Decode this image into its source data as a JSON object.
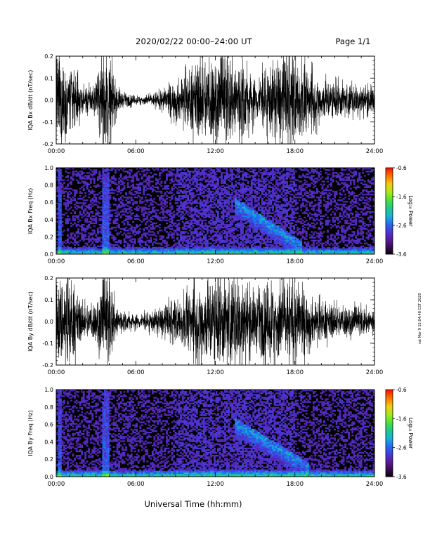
{
  "header": {
    "title": "2020/02/22  00:00–24:00 UT",
    "page_label": "Page 1/1"
  },
  "footer": {
    "xlabel": "Universal Time (hh:mm)",
    "side_note": "rat  Mar 9 15:04:48 CST 2020"
  },
  "colors": {
    "waveform": "#000000",
    "frame": "#000000",
    "colormap": [
      "#000000",
      "#3a0a52",
      "#5a1a9a",
      "#4a38d8",
      "#1f6ff0",
      "#18b4d6",
      "#20c890",
      "#4fe036",
      "#a8e81e",
      "#f0d010",
      "#ff7a00",
      "#ff1a00"
    ]
  },
  "chart_data": [
    {
      "type": "line",
      "panel": "Bx waveform",
      "ylabel": "IQA Bx dB/dt (nT/sec)",
      "ylim": [
        -0.2,
        0.2
      ],
      "yticks": [
        "0.2",
        "0.1",
        "0.0",
        "-0.1",
        "-0.2"
      ],
      "xlim_hours": [
        0,
        24
      ],
      "xticks": [
        "00:00",
        "06:00",
        "12:00",
        "18:00",
        "24:00"
      ],
      "envelope": {
        "hour": [
          0,
          1,
          2,
          3,
          3.5,
          4,
          4.5,
          5,
          6,
          7,
          8,
          9,
          10,
          11,
          12,
          13,
          14,
          15,
          16,
          17,
          18,
          19,
          20,
          21,
          22,
          23,
          24
        ],
        "amplitude": [
          0.22,
          0.18,
          0.06,
          0.08,
          0.22,
          0.22,
          0.08,
          0.035,
          0.02,
          0.025,
          0.05,
          0.09,
          0.13,
          0.2,
          0.22,
          0.22,
          0.2,
          0.1,
          0.16,
          0.2,
          0.22,
          0.14,
          0.1,
          0.09,
          0.08,
          0.07,
          0.07
        ]
      }
    },
    {
      "type": "heatmap",
      "panel": "Bx spectrogram",
      "ylabel": "IQA Bx Freq (Hz)",
      "ylim": [
        0,
        1.0
      ],
      "yticks": [
        "1.0",
        "0.8",
        "0.6",
        "0.4",
        "0.2",
        "0.0"
      ],
      "xlim_hours": [
        0,
        24
      ],
      "xticks": [
        "00:00",
        "06:00",
        "12:00",
        "18:00",
        "24:00"
      ],
      "colorbar": {
        "label": "Log₁₀ Power",
        "range": [
          -3.6,
          -0.6
        ],
        "ticks": [
          "-0.6",
          "-1.6",
          "-2.6",
          "-3.6"
        ]
      },
      "features": {
        "band_start_hour": 13.5,
        "band_end_hour": 18.5,
        "band_start_freq": 0.6,
        "band_end_freq": 0.1,
        "spikes_hours": [
          0.3,
          3.6,
          3.9
        ]
      }
    },
    {
      "type": "line",
      "panel": "By waveform",
      "ylabel": "IQA By dB/dt (nT/sec)",
      "ylim": [
        -0.2,
        0.2
      ],
      "yticks": [
        "0.2",
        "0.1",
        "0.0",
        "-0.1",
        "-0.2"
      ],
      "xlim_hours": [
        0,
        24
      ],
      "xticks": [
        "00:00",
        "06:00",
        "12:00",
        "18:00",
        "24:00"
      ],
      "envelope": {
        "hour": [
          0,
          1,
          2,
          3,
          3.5,
          4,
          4.5,
          5,
          6,
          7,
          8,
          9,
          10,
          11,
          12,
          13,
          14,
          15,
          16,
          17,
          18,
          19,
          20,
          21,
          22,
          23,
          24
        ],
        "amplitude": [
          0.22,
          0.2,
          0.08,
          0.1,
          0.22,
          0.22,
          0.1,
          0.05,
          0.035,
          0.045,
          0.07,
          0.1,
          0.14,
          0.2,
          0.22,
          0.22,
          0.21,
          0.14,
          0.18,
          0.2,
          0.2,
          0.12,
          0.09,
          0.08,
          0.08,
          0.07,
          0.07
        ]
      }
    },
    {
      "type": "heatmap",
      "panel": "By spectrogram",
      "ylabel": "IQA By Freq (Hz)",
      "ylim": [
        0,
        1.0
      ],
      "yticks": [
        "1.0",
        "0.8",
        "0.6",
        "0.4",
        "0.2",
        "0.0"
      ],
      "xlim_hours": [
        0,
        24
      ],
      "xticks": [
        "00:00",
        "06:00",
        "12:00",
        "18:00",
        "24:00"
      ],
      "colorbar": {
        "label": "Log₁₀ Power",
        "range": [
          -3.6,
          -0.6
        ],
        "ticks": [
          "-0.6",
          "-1.6",
          "-2.6",
          "-3.6"
        ]
      },
      "features": {
        "band_start_hour": 13.5,
        "band_end_hour": 19.0,
        "band_start_freq": 0.62,
        "band_end_freq": 0.12,
        "spikes_hours": [
          0.3,
          3.6,
          3.9
        ]
      }
    }
  ]
}
